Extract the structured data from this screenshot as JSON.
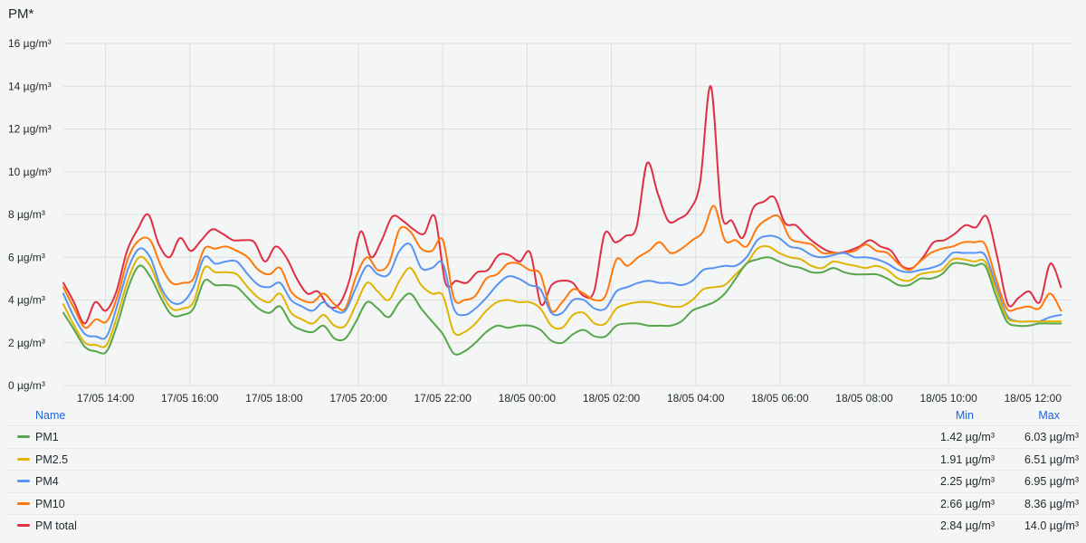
{
  "panel": {
    "title": "PM*"
  },
  "chart_data": {
    "type": "line",
    "title": "PM*",
    "unit": "µg/m³",
    "ylim": [
      0,
      16
    ],
    "yticks": [
      0,
      2,
      4,
      6,
      8,
      10,
      12,
      14,
      16
    ],
    "ytick_labels": [
      "0 µg/m³",
      "2 µg/m³",
      "4 µg/m³",
      "6 µg/m³",
      "8 µg/m³",
      "10 µg/m³",
      "12 µg/m³",
      "14 µg/m³",
      "16 µg/m³"
    ],
    "x_start": "17/05 13:00",
    "x_end": "18/05 12:40",
    "xlim": [
      "17/05 13:00",
      "18/05 12:55"
    ],
    "xtick_labels": [
      "17/05 14:00",
      "17/05 16:00",
      "17/05 18:00",
      "17/05 20:00",
      "17/05 22:00",
      "18/05 00:00",
      "18/05 02:00",
      "18/05 04:00",
      "18/05 06:00",
      "18/05 08:00",
      "18/05 10:00",
      "18/05 12:00"
    ],
    "xtick_times": [
      "17/05 14:00",
      "17/05 16:00",
      "17/05 18:00",
      "17/05 20:00",
      "17/05 22:00",
      "18/05 00:00",
      "18/05 02:00",
      "18/05 04:00",
      "18/05 06:00",
      "18/05 08:00",
      "18/05 10:00",
      "18/05 12:00"
    ],
    "x_step": "10 min",
    "grid": true,
    "legend_placement": "bottom-table",
    "series": [
      {
        "name": "PM1",
        "color": "#56a64b",
        "min": "1.42 µg/m³",
        "max": "6.03 µg/m³",
        "values": [
          3.4,
          2.6,
          1.8,
          1.6,
          1.6,
          2.9,
          4.6,
          5.6,
          5.1,
          4.1,
          3.3,
          3.3,
          3.6,
          4.9,
          4.7,
          4.7,
          4.6,
          4.1,
          3.6,
          3.4,
          3.7,
          2.9,
          2.6,
          2.5,
          2.8,
          2.2,
          2.2,
          3.0,
          3.9,
          3.6,
          3.2,
          3.9,
          4.3,
          3.6,
          3.0,
          2.4,
          1.5,
          1.6,
          2.0,
          2.5,
          2.8,
          2.7,
          2.8,
          2.8,
          2.6,
          2.1,
          2.0,
          2.4,
          2.6,
          2.3,
          2.3,
          2.8,
          2.9,
          2.9,
          2.8,
          2.8,
          2.8,
          3.0,
          3.5,
          3.7,
          3.9,
          4.3,
          5.0,
          5.7,
          5.9,
          6.0,
          5.8,
          5.6,
          5.5,
          5.3,
          5.3,
          5.5,
          5.3,
          5.2,
          5.2,
          5.2,
          5.0,
          4.7,
          4.7,
          5.0,
          5.0,
          5.2,
          5.7,
          5.7,
          5.6,
          5.6,
          4.2,
          3.0,
          2.8,
          2.8,
          2.9,
          2.9,
          2.9
        ]
      },
      {
        "name": "PM2.5",
        "color": "#e0b400",
        "min": "1.91 µg/m³",
        "max": "6.51 µg/m³",
        "values": [
          3.8,
          2.8,
          2.0,
          1.9,
          1.9,
          3.3,
          5.0,
          6.0,
          5.6,
          4.4,
          3.6,
          3.6,
          3.9,
          5.5,
          5.3,
          5.3,
          5.2,
          4.6,
          4.1,
          3.9,
          4.3,
          3.4,
          3.1,
          2.9,
          3.3,
          2.8,
          2.8,
          3.8,
          4.8,
          4.4,
          4.0,
          4.9,
          5.5,
          4.7,
          4.3,
          4.2,
          2.5,
          2.5,
          2.9,
          3.5,
          3.9,
          4.0,
          3.9,
          3.9,
          3.6,
          2.8,
          2.7,
          3.3,
          3.4,
          2.9,
          2.9,
          3.6,
          3.8,
          3.9,
          3.9,
          3.8,
          3.7,
          3.7,
          4.0,
          4.5,
          4.6,
          4.7,
          5.2,
          5.7,
          6.4,
          6.5,
          6.2,
          6.0,
          5.9,
          5.6,
          5.5,
          5.8,
          5.7,
          5.6,
          5.5,
          5.6,
          5.4,
          5.0,
          4.9,
          5.2,
          5.3,
          5.4,
          5.9,
          5.9,
          5.8,
          5.8,
          4.5,
          3.2,
          3.0,
          3.0,
          3.0,
          3.0,
          3.0
        ]
      },
      {
        "name": "PM4",
        "color": "#5794f2",
        "min": "2.25 µg/m³",
        "max": "6.95 µg/m³",
        "values": [
          4.3,
          3.2,
          2.4,
          2.3,
          2.3,
          3.8,
          5.5,
          6.4,
          6.0,
          4.6,
          3.9,
          3.9,
          4.6,
          6.0,
          5.7,
          5.8,
          5.8,
          5.2,
          4.7,
          4.6,
          4.8,
          4.0,
          3.7,
          3.5,
          3.9,
          3.5,
          3.5,
          4.6,
          5.6,
          5.2,
          5.2,
          6.3,
          6.6,
          5.5,
          5.5,
          5.7,
          3.6,
          3.3,
          3.6,
          4.1,
          4.7,
          5.1,
          5.0,
          4.7,
          4.5,
          3.4,
          3.4,
          4.0,
          4.0,
          3.6,
          3.6,
          4.4,
          4.6,
          4.8,
          4.9,
          4.8,
          4.8,
          4.7,
          4.9,
          5.4,
          5.5,
          5.6,
          5.6,
          6.0,
          6.8,
          7.0,
          6.9,
          6.5,
          6.4,
          6.1,
          6.0,
          6.1,
          6.2,
          6.0,
          6.0,
          5.9,
          5.7,
          5.4,
          5.3,
          5.4,
          5.5,
          5.7,
          6.2,
          6.2,
          6.2,
          6.1,
          4.7,
          3.3,
          3.0,
          3.0,
          3.0,
          3.2,
          3.3
        ]
      },
      {
        "name": "PM10",
        "color": "#ff780a",
        "min": "2.66 µg/m³",
        "max": "8.36 µg/m³",
        "values": [
          4.6,
          3.6,
          2.7,
          3.1,
          3.0,
          4.2,
          6.0,
          6.8,
          6.8,
          5.6,
          4.8,
          4.8,
          5.0,
          6.4,
          6.4,
          6.5,
          6.3,
          6.0,
          5.4,
          5.2,
          5.5,
          4.4,
          4.0,
          3.9,
          4.3,
          3.8,
          3.6,
          5.1,
          6.0,
          5.4,
          5.7,
          7.3,
          7.2,
          6.4,
          6.3,
          6.8,
          4.1,
          4.0,
          4.2,
          5.0,
          5.2,
          5.7,
          5.7,
          5.4,
          5.2,
          3.5,
          3.9,
          4.5,
          4.3,
          4.0,
          4.2,
          5.9,
          5.6,
          6.0,
          6.3,
          6.7,
          6.2,
          6.4,
          6.8,
          7.2,
          8.4,
          6.8,
          6.8,
          6.5,
          7.4,
          7.8,
          7.9,
          6.9,
          6.7,
          6.6,
          6.2,
          6.2,
          6.2,
          6.3,
          6.6,
          6.3,
          6.2,
          5.7,
          5.4,
          5.8,
          6.2,
          6.4,
          6.5,
          6.7,
          6.7,
          6.6,
          5.0,
          3.6,
          3.6,
          3.7,
          3.6,
          4.3,
          3.5
        ]
      },
      {
        "name": "PM total",
        "color": "#e02f44",
        "min": "2.84 µg/m³",
        "max": "14.0 µg/m³",
        "values": [
          4.8,
          3.9,
          2.9,
          3.9,
          3.5,
          4.4,
          6.3,
          7.3,
          8.0,
          6.6,
          6.0,
          6.9,
          6.3,
          6.8,
          7.3,
          7.1,
          6.8,
          6.8,
          6.7,
          5.8,
          6.5,
          6.0,
          5.0,
          4.3,
          4.4,
          3.7,
          3.8,
          5.0,
          7.2,
          6.0,
          6.8,
          7.9,
          7.7,
          7.3,
          7.1,
          7.9,
          4.8,
          4.9,
          4.8,
          5.3,
          5.4,
          6.1,
          6.1,
          5.8,
          6.2,
          3.8,
          4.7,
          4.9,
          4.8,
          4.2,
          4.4,
          7.1,
          6.7,
          7.0,
          7.4,
          10.4,
          9.0,
          7.7,
          7.8,
          8.2,
          9.5,
          14.0,
          8.1,
          7.7,
          6.9,
          8.3,
          8.6,
          8.8,
          7.6,
          7.5,
          7.0,
          6.6,
          6.3,
          6.2,
          6.3,
          6.5,
          6.8,
          6.5,
          6.3,
          5.6,
          5.5,
          6.0,
          6.7,
          6.8,
          7.1,
          7.5,
          7.4,
          7.9,
          6.0,
          3.8,
          4.1,
          4.4,
          3.9,
          5.7,
          4.6
        ]
      }
    ]
  },
  "legend": {
    "headers": {
      "name": "Name",
      "min": "Min",
      "max": "Max"
    },
    "rows": [
      {
        "name": "PM1",
        "color": "#56a64b",
        "min": "1.42 µg/m³",
        "max": "6.03 µg/m³"
      },
      {
        "name": "PM2.5",
        "color": "#e0b400",
        "min": "1.91 µg/m³",
        "max": "6.51 µg/m³"
      },
      {
        "name": "PM4",
        "color": "#5794f2",
        "min": "2.25 µg/m³",
        "max": "6.95 µg/m³"
      },
      {
        "name": "PM10",
        "color": "#ff780a",
        "min": "2.66 µg/m³",
        "max": "8.36 µg/m³"
      },
      {
        "name": "PM total",
        "color": "#e02f44",
        "min": "2.84 µg/m³",
        "max": "14.0 µg/m³"
      }
    ]
  }
}
